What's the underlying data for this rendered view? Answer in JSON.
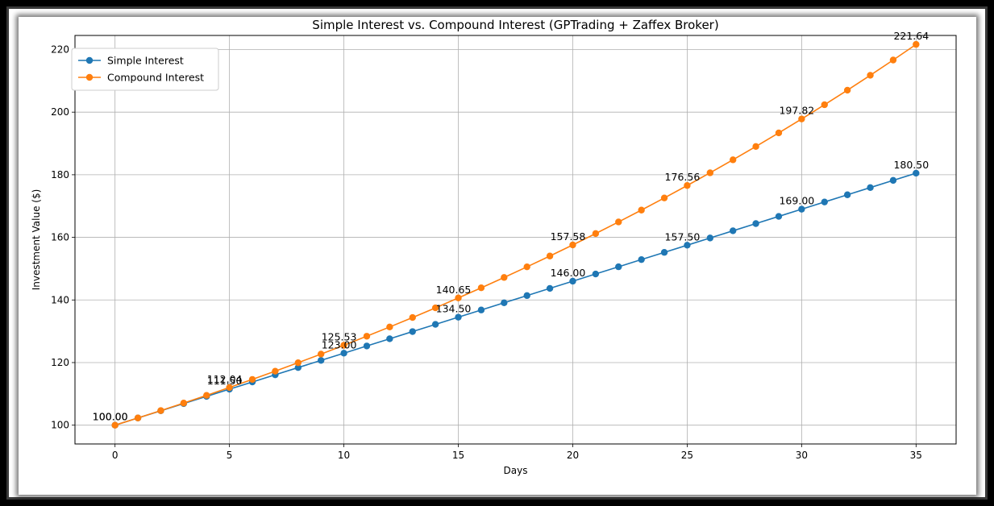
{
  "chart_data": {
    "type": "line",
    "title": "Simple Interest vs. Compound Interest (GPTrading + Zaffex Broker)",
    "xlabel": "Days",
    "ylabel": "Investment Value ($)",
    "xlim": [
      -1.75,
      36.75
    ],
    "ylim": [
      94,
      224.5
    ],
    "xticks": [
      0,
      5,
      10,
      15,
      20,
      25,
      30,
      35
    ],
    "yticks": [
      100,
      120,
      140,
      160,
      180,
      200,
      220
    ],
    "grid": true,
    "legend_position": "top-left",
    "x": [
      0,
      1,
      2,
      3,
      4,
      5,
      6,
      7,
      8,
      9,
      10,
      11,
      12,
      13,
      14,
      15,
      16,
      17,
      18,
      19,
      20,
      21,
      22,
      23,
      24,
      25,
      26,
      27,
      28,
      29,
      30,
      31,
      32,
      33,
      34,
      35
    ],
    "series": [
      {
        "name": "Simple Interest",
        "color": "#1f77b4",
        "values": [
          100.0,
          102.3,
          104.6,
          106.9,
          109.2,
          111.5,
          113.8,
          116.1,
          118.4,
          120.7,
          123.0,
          125.3,
          127.6,
          129.9,
          132.2,
          134.5,
          136.8,
          139.1,
          141.4,
          143.7,
          146.0,
          148.3,
          150.6,
          152.9,
          155.2,
          157.5,
          159.8,
          162.1,
          164.4,
          166.7,
          169.0,
          171.3,
          173.6,
          175.9,
          178.2,
          180.5
        ],
        "labels": [
          {
            "x": 0,
            "text": "100.00"
          },
          {
            "x": 5,
            "text": "111.50"
          },
          {
            "x": 10,
            "text": "123.00"
          },
          {
            "x": 15,
            "text": "134.50"
          },
          {
            "x": 20,
            "text": "146.00"
          },
          {
            "x": 25,
            "text": "157.50"
          },
          {
            "x": 30,
            "text": "169.00"
          },
          {
            "x": 35,
            "text": "180.50"
          }
        ]
      },
      {
        "name": "Compound Interest",
        "color": "#ff7f0e",
        "values": [
          100.0,
          102.3,
          104.65,
          107.06,
          109.52,
          112.04,
          114.62,
          117.25,
          119.95,
          122.71,
          125.53,
          128.42,
          131.37,
          134.39,
          137.48,
          140.65,
          143.88,
          147.19,
          150.58,
          154.04,
          157.58,
          161.21,
          164.92,
          168.71,
          172.59,
          176.56,
          180.62,
          184.77,
          189.02,
          193.37,
          197.82,
          202.37,
          207.02,
          211.78,
          216.65,
          221.64
        ],
        "labels": [
          {
            "x": 0,
            "text": "100.00"
          },
          {
            "x": 5,
            "text": "112.04"
          },
          {
            "x": 10,
            "text": "125.53"
          },
          {
            "x": 15,
            "text": "140.65"
          },
          {
            "x": 20,
            "text": "157.58"
          },
          {
            "x": 25,
            "text": "176.56"
          },
          {
            "x": 30,
            "text": "197.82"
          },
          {
            "x": 35,
            "text": "221.64"
          }
        ]
      }
    ]
  }
}
